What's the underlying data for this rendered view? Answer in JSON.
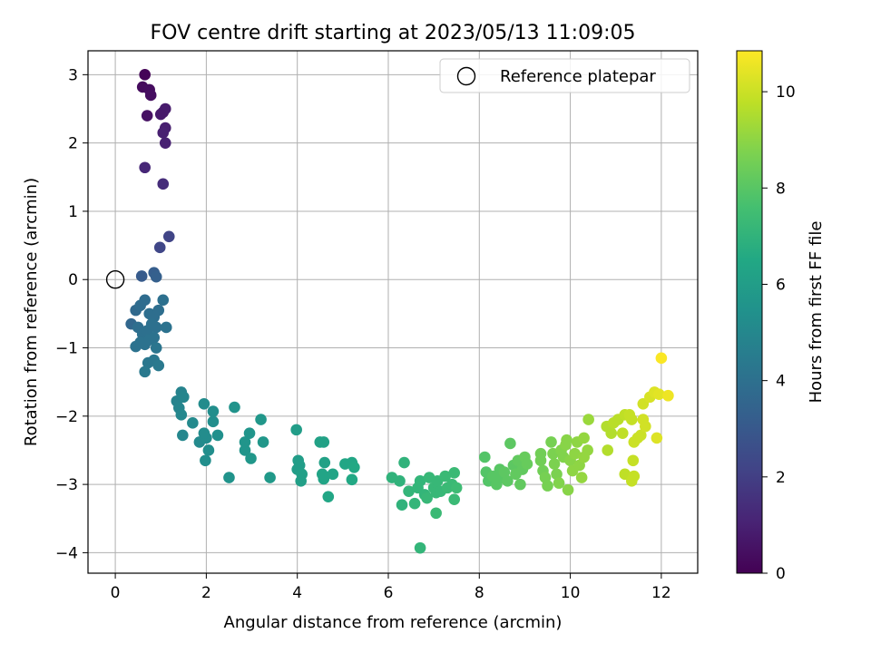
{
  "chart_data": {
    "type": "scatter",
    "title": "FOV centre drift starting at 2023/05/13 11:09:05",
    "xlabel": "Angular distance from reference (arcmin)",
    "ylabel": "Rotation from reference (arcmin)",
    "xlim": [
      -0.6,
      12.8
    ],
    "ylim": [
      -4.3,
      3.35
    ],
    "xticks": [
      0,
      2,
      4,
      6,
      8,
      10,
      12
    ],
    "yticks": [
      -4,
      -3,
      -2,
      -1,
      0,
      1,
      2,
      3
    ],
    "grid": true,
    "legend": {
      "placement": "top-right",
      "entries": [
        "Reference platepar"
      ]
    },
    "reference_point": {
      "label": "Reference platepar",
      "x": 0,
      "y": 0
    },
    "colorbar": {
      "label": "Hours from first FF file",
      "min": 0,
      "max": 10.85,
      "ticks": [
        0,
        2,
        4,
        6,
        8,
        10
      ],
      "colormap": "viridis"
    },
    "points": [
      {
        "x": 0.65,
        "y": 3.0,
        "c": 0.1
      },
      {
        "x": 0.6,
        "y": 2.82,
        "c": 0.3
      },
      {
        "x": 0.75,
        "y": 2.78,
        "c": 0.35
      },
      {
        "x": 0.78,
        "y": 2.7,
        "c": 0.4
      },
      {
        "x": 0.7,
        "y": 2.4,
        "c": 0.5
      },
      {
        "x": 1.05,
        "y": 2.45,
        "c": 0.7
      },
      {
        "x": 1.1,
        "y": 2.5,
        "c": 0.8
      },
      {
        "x": 1.0,
        "y": 2.42,
        "c": 0.75
      },
      {
        "x": 1.1,
        "y": 2.22,
        "c": 0.9
      },
      {
        "x": 1.05,
        "y": 2.15,
        "c": 0.95
      },
      {
        "x": 1.1,
        "y": 2.0,
        "c": 1.0
      },
      {
        "x": 0.65,
        "y": 1.64,
        "c": 1.2
      },
      {
        "x": 1.05,
        "y": 1.4,
        "c": 1.4
      },
      {
        "x": 1.18,
        "y": 0.63,
        "c": 2.2
      },
      {
        "x": 0.98,
        "y": 0.47,
        "c": 2.3
      },
      {
        "x": 0.58,
        "y": 0.05,
        "c": 3.1
      },
      {
        "x": 0.85,
        "y": 0.1,
        "c": 3.2
      },
      {
        "x": 0.9,
        "y": 0.04,
        "c": 3.3
      },
      {
        "x": 0.35,
        "y": -0.65,
        "c": 3.6
      },
      {
        "x": 0.45,
        "y": -0.45,
        "c": 3.7
      },
      {
        "x": 0.55,
        "y": -0.38,
        "c": 3.8
      },
      {
        "x": 0.65,
        "y": -0.3,
        "c": 3.8
      },
      {
        "x": 0.75,
        "y": -0.5,
        "c": 3.9
      },
      {
        "x": 0.85,
        "y": -0.55,
        "c": 3.9
      },
      {
        "x": 0.95,
        "y": -0.45,
        "c": 3.9
      },
      {
        "x": 1.05,
        "y": -0.3,
        "c": 4.0
      },
      {
        "x": 0.5,
        "y": -0.7,
        "c": 3.9
      },
      {
        "x": 0.6,
        "y": -0.8,
        "c": 4.0
      },
      {
        "x": 0.7,
        "y": -0.75,
        "c": 4.0
      },
      {
        "x": 0.8,
        "y": -0.65,
        "c": 4.0
      },
      {
        "x": 0.9,
        "y": -0.7,
        "c": 4.0
      },
      {
        "x": 0.45,
        "y": -0.98,
        "c": 4.1
      },
      {
        "x": 0.55,
        "y": -0.92,
        "c": 4.1
      },
      {
        "x": 0.65,
        "y": -0.95,
        "c": 4.1
      },
      {
        "x": 0.75,
        "y": -0.88,
        "c": 4.1
      },
      {
        "x": 0.85,
        "y": -0.85,
        "c": 4.1
      },
      {
        "x": 0.9,
        "y": -1.0,
        "c": 4.2
      },
      {
        "x": 1.12,
        "y": -0.7,
        "c": 4.1
      },
      {
        "x": 0.72,
        "y": -1.22,
        "c": 4.3
      },
      {
        "x": 0.85,
        "y": -1.18,
        "c": 4.3
      },
      {
        "x": 0.95,
        "y": -1.26,
        "c": 4.4
      },
      {
        "x": 0.65,
        "y": -1.35,
        "c": 4.4
      },
      {
        "x": 1.35,
        "y": -1.78,
        "c": 4.8
      },
      {
        "x": 1.45,
        "y": -1.65,
        "c": 4.8
      },
      {
        "x": 1.5,
        "y": -1.72,
        "c": 4.9
      },
      {
        "x": 1.4,
        "y": -1.88,
        "c": 4.9
      },
      {
        "x": 1.45,
        "y": -1.98,
        "c": 5.0
      },
      {
        "x": 1.48,
        "y": -2.28,
        "c": 5.0
      },
      {
        "x": 1.7,
        "y": -2.1,
        "c": 5.1
      },
      {
        "x": 1.85,
        "y": -2.38,
        "c": 5.1
      },
      {
        "x": 1.95,
        "y": -1.82,
        "c": 5.2
      },
      {
        "x": 2.0,
        "y": -2.32,
        "c": 5.2
      },
      {
        "x": 1.95,
        "y": -2.25,
        "c": 5.2
      },
      {
        "x": 2.05,
        "y": -2.5,
        "c": 5.3
      },
      {
        "x": 1.98,
        "y": -2.65,
        "c": 5.3
      },
      {
        "x": 2.15,
        "y": -1.93,
        "c": 5.3
      },
      {
        "x": 2.15,
        "y": -2.08,
        "c": 5.3
      },
      {
        "x": 2.25,
        "y": -2.28,
        "c": 5.4
      },
      {
        "x": 2.5,
        "y": -2.9,
        "c": 5.5
      },
      {
        "x": 2.62,
        "y": -1.87,
        "c": 5.5
      },
      {
        "x": 2.85,
        "y": -2.38,
        "c": 5.6
      },
      {
        "x": 2.85,
        "y": -2.5,
        "c": 5.6
      },
      {
        "x": 2.95,
        "y": -2.25,
        "c": 5.6
      },
      {
        "x": 2.98,
        "y": -2.62,
        "c": 5.7
      },
      {
        "x": 3.2,
        "y": -2.05,
        "c": 5.7
      },
      {
        "x": 3.25,
        "y": -2.38,
        "c": 5.7
      },
      {
        "x": 3.4,
        "y": -2.9,
        "c": 5.8
      },
      {
        "x": 3.98,
        "y": -2.2,
        "c": 6.0
      },
      {
        "x": 4.02,
        "y": -2.65,
        "c": 6.0
      },
      {
        "x": 4.05,
        "y": -2.72,
        "c": 6.0
      },
      {
        "x": 4.0,
        "y": -2.78,
        "c": 6.0
      },
      {
        "x": 4.1,
        "y": -2.85,
        "c": 6.1
      },
      {
        "x": 4.08,
        "y": -2.95,
        "c": 6.1
      },
      {
        "x": 4.5,
        "y": -2.38,
        "c": 6.2
      },
      {
        "x": 4.58,
        "y": -2.38,
        "c": 6.2
      },
      {
        "x": 4.6,
        "y": -2.68,
        "c": 6.2
      },
      {
        "x": 4.55,
        "y": -2.85,
        "c": 6.3
      },
      {
        "x": 4.58,
        "y": -2.92,
        "c": 6.3
      },
      {
        "x": 4.78,
        "y": -2.85,
        "c": 6.3
      },
      {
        "x": 4.68,
        "y": -3.18,
        "c": 6.4
      },
      {
        "x": 5.05,
        "y": -2.7,
        "c": 6.4
      },
      {
        "x": 5.2,
        "y": -2.68,
        "c": 6.4
      },
      {
        "x": 5.25,
        "y": -2.75,
        "c": 6.5
      },
      {
        "x": 5.2,
        "y": -2.93,
        "c": 6.5
      },
      {
        "x": 6.08,
        "y": -2.9,
        "c": 7.0
      },
      {
        "x": 6.25,
        "y": -2.95,
        "c": 7.0
      },
      {
        "x": 6.35,
        "y": -2.68,
        "c": 7.0
      },
      {
        "x": 6.3,
        "y": -3.3,
        "c": 7.0
      },
      {
        "x": 6.45,
        "y": -3.1,
        "c": 7.1
      },
      {
        "x": 6.58,
        "y": -3.28,
        "c": 7.1
      },
      {
        "x": 6.65,
        "y": -3.05,
        "c": 7.1
      },
      {
        "x": 6.7,
        "y": -2.95,
        "c": 7.1
      },
      {
        "x": 6.8,
        "y": -3.15,
        "c": 7.1
      },
      {
        "x": 6.85,
        "y": -3.2,
        "c": 7.2
      },
      {
        "x": 6.9,
        "y": -2.9,
        "c": 7.2
      },
      {
        "x": 7.0,
        "y": -3.05,
        "c": 7.2
      },
      {
        "x": 7.05,
        "y": -3.12,
        "c": 7.2
      },
      {
        "x": 7.08,
        "y": -2.95,
        "c": 7.2
      },
      {
        "x": 7.15,
        "y": -3.1,
        "c": 7.2
      },
      {
        "x": 7.25,
        "y": -2.88,
        "c": 7.3
      },
      {
        "x": 7.3,
        "y": -3.05,
        "c": 7.3
      },
      {
        "x": 7.4,
        "y": -3.0,
        "c": 7.3
      },
      {
        "x": 7.45,
        "y": -2.83,
        "c": 7.3
      },
      {
        "x": 7.45,
        "y": -3.22,
        "c": 7.3
      },
      {
        "x": 7.5,
        "y": -3.05,
        "c": 7.4
      },
      {
        "x": 7.05,
        "y": -3.42,
        "c": 7.3
      },
      {
        "x": 6.7,
        "y": -3.93,
        "c": 7.1
      },
      {
        "x": 8.12,
        "y": -2.6,
        "c": 7.9
      },
      {
        "x": 8.15,
        "y": -2.82,
        "c": 7.9
      },
      {
        "x": 8.2,
        "y": -2.95,
        "c": 7.9
      },
      {
        "x": 8.3,
        "y": -2.88,
        "c": 8.0
      },
      {
        "x": 8.38,
        "y": -3.0,
        "c": 8.0
      },
      {
        "x": 8.45,
        "y": -2.78,
        "c": 8.0
      },
      {
        "x": 8.5,
        "y": -2.9,
        "c": 8.0
      },
      {
        "x": 8.55,
        "y": -2.82,
        "c": 8.1
      },
      {
        "x": 8.62,
        "y": -2.95,
        "c": 8.1
      },
      {
        "x": 8.68,
        "y": -2.4,
        "c": 8.1
      },
      {
        "x": 8.75,
        "y": -2.72,
        "c": 8.1
      },
      {
        "x": 8.8,
        "y": -2.85,
        "c": 8.2
      },
      {
        "x": 8.85,
        "y": -2.65,
        "c": 8.2
      },
      {
        "x": 8.9,
        "y": -3.0,
        "c": 8.2
      },
      {
        "x": 8.95,
        "y": -2.78,
        "c": 8.2
      },
      {
        "x": 9.0,
        "y": -2.6,
        "c": 8.3
      },
      {
        "x": 9.05,
        "y": -2.7,
        "c": 8.3
      },
      {
        "x": 9.35,
        "y": -2.55,
        "c": 8.5
      },
      {
        "x": 9.35,
        "y": -2.65,
        "c": 8.5
      },
      {
        "x": 9.4,
        "y": -2.8,
        "c": 8.5
      },
      {
        "x": 9.45,
        "y": -2.9,
        "c": 8.6
      },
      {
        "x": 9.5,
        "y": -3.02,
        "c": 8.6
      },
      {
        "x": 9.58,
        "y": -2.38,
        "c": 8.6
      },
      {
        "x": 9.62,
        "y": -2.55,
        "c": 8.7
      },
      {
        "x": 9.65,
        "y": -2.7,
        "c": 8.7
      },
      {
        "x": 9.7,
        "y": -2.85,
        "c": 8.7
      },
      {
        "x": 9.75,
        "y": -2.98,
        "c": 8.8
      },
      {
        "x": 9.8,
        "y": -2.5,
        "c": 8.8
      },
      {
        "x": 9.85,
        "y": -2.6,
        "c": 8.8
      },
      {
        "x": 9.9,
        "y": -2.42,
        "c": 8.9
      },
      {
        "x": 9.92,
        "y": -2.35,
        "c": 8.9
      },
      {
        "x": 9.95,
        "y": -3.08,
        "c": 8.9
      },
      {
        "x": 10.0,
        "y": -2.65,
        "c": 8.9
      },
      {
        "x": 10.05,
        "y": -2.8,
        "c": 9.0
      },
      {
        "x": 10.1,
        "y": -2.55,
        "c": 9.0
      },
      {
        "x": 10.15,
        "y": -2.38,
        "c": 9.0
      },
      {
        "x": 10.2,
        "y": -2.72,
        "c": 9.0
      },
      {
        "x": 10.25,
        "y": -2.9,
        "c": 9.1
      },
      {
        "x": 10.3,
        "y": -2.6,
        "c": 9.1
      },
      {
        "x": 10.3,
        "y": -2.32,
        "c": 9.1
      },
      {
        "x": 10.38,
        "y": -2.5,
        "c": 9.1
      },
      {
        "x": 10.4,
        "y": -2.05,
        "c": 9.2
      },
      {
        "x": 10.8,
        "y": -2.15,
        "c": 9.6
      },
      {
        "x": 10.82,
        "y": -2.5,
        "c": 9.6
      },
      {
        "x": 10.9,
        "y": -2.25,
        "c": 9.6
      },
      {
        "x": 10.95,
        "y": -2.1,
        "c": 9.7
      },
      {
        "x": 11.05,
        "y": -2.05,
        "c": 9.7
      },
      {
        "x": 11.15,
        "y": -2.25,
        "c": 9.8
      },
      {
        "x": 11.2,
        "y": -2.85,
        "c": 9.8
      },
      {
        "x": 11.2,
        "y": -1.98,
        "c": 9.8
      },
      {
        "x": 11.3,
        "y": -1.98,
        "c": 9.9
      },
      {
        "x": 11.35,
        "y": -2.05,
        "c": 9.9
      },
      {
        "x": 11.35,
        "y": -2.95,
        "c": 9.9
      },
      {
        "x": 11.38,
        "y": -2.65,
        "c": 9.9
      },
      {
        "x": 11.4,
        "y": -2.88,
        "c": 9.9
      },
      {
        "x": 11.4,
        "y": -2.38,
        "c": 10.0
      },
      {
        "x": 11.48,
        "y": -2.32,
        "c": 10.0
      },
      {
        "x": 11.55,
        "y": -2.28,
        "c": 10.0
      },
      {
        "x": 11.6,
        "y": -2.05,
        "c": 10.1
      },
      {
        "x": 11.6,
        "y": -1.82,
        "c": 10.1
      },
      {
        "x": 11.65,
        "y": -2.15,
        "c": 10.1
      },
      {
        "x": 11.75,
        "y": -1.72,
        "c": 10.2
      },
      {
        "x": 11.85,
        "y": -1.65,
        "c": 10.3
      },
      {
        "x": 11.9,
        "y": -2.32,
        "c": 10.3
      },
      {
        "x": 11.95,
        "y": -1.68,
        "c": 10.4
      },
      {
        "x": 12.15,
        "y": -1.7,
        "c": 10.6
      },
      {
        "x": 12.0,
        "y": -1.15,
        "c": 10.8
      }
    ]
  }
}
